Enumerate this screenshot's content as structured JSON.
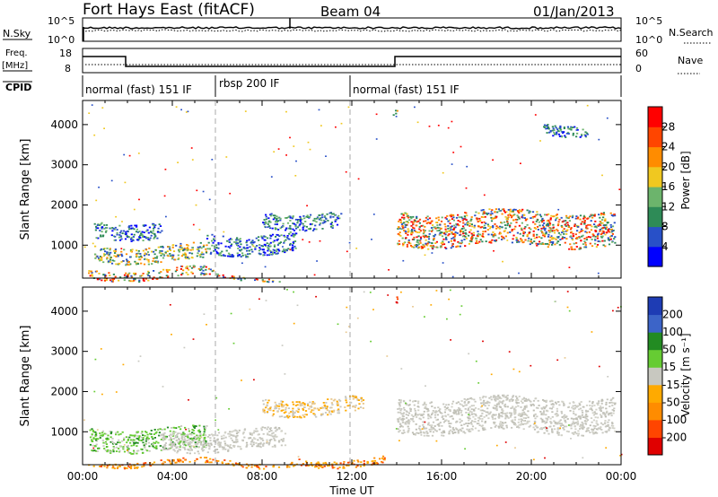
{
  "header": {
    "station": "Fort Hays East (fitACF)",
    "beam": "Beam 04",
    "date": "01/Jan/2013"
  },
  "top_panels": {
    "nsky_label": "N.Sky",
    "nsearch_label": "N.Search",
    "noise_ticks_left": [
      "10^5",
      "10^0"
    ],
    "noise_ticks_right": [
      "10^5",
      "10^0"
    ],
    "freq_label_1": "Freq.",
    "freq_label_2": "[MHz]",
    "freq_ticks": [
      "18",
      "8"
    ],
    "nave_ticks": [
      "60",
      "0"
    ],
    "nave_label": "Nave",
    "cpid_label": "CPID",
    "cpid_segments": [
      {
        "label": "normal (fast) 151 IF"
      },
      {
        "label": "rbsp 200 IF"
      },
      {
        "label": "normal (fast) 151 IF"
      }
    ]
  },
  "power_colorbar": {
    "label": "Power [dB]",
    "ticks": [
      "28",
      "24",
      "20",
      "16",
      "12",
      "8",
      "4"
    ],
    "colors": [
      "#0000ff",
      "#2850c8",
      "#2e8b57",
      "#6cb46c",
      "#f0c820",
      "#ff8c00",
      "#ff4500",
      "#ff0000"
    ]
  },
  "velocity_colorbar": {
    "label": "Velocity [m s⁻¹]",
    "ticks": [
      "200",
      "100",
      "50",
      "15",
      "-15",
      "-50",
      "-100",
      "-200"
    ],
    "colors": [
      "#1e3cb4",
      "#3c64c8",
      "#228b22",
      "#66cc33",
      "#c8c8c0",
      "#ffaa00",
      "#ff8c00",
      "#ff4500",
      "#e00000"
    ]
  },
  "chart_data": [
    {
      "type": "heatmap",
      "title": "",
      "xlabel": "",
      "ylabel": "Slant Range [km]",
      "xlim_hours": [
        0,
        24
      ],
      "ylim_km": [
        180,
        4600
      ],
      "yticks": [
        "4000",
        "3000",
        "2000",
        "1000"
      ],
      "ytick_values": [
        4000,
        3000,
        2000,
        1000
      ],
      "mode_boundaries_hours": [
        6,
        12
      ],
      "bands": [
        {
          "t0": 0.2,
          "t1": 5.8,
          "r": [
            300,
            420
          ],
          "level": "high"
        },
        {
          "t0": 0.3,
          "t1": 9.0,
          "r": [
            180,
            260
          ],
          "level": "high"
        },
        {
          "t0": 0.5,
          "t1": 5.5,
          "r": [
            600,
            1000
          ],
          "level": "mid"
        },
        {
          "t0": 0.5,
          "t1": 3.5,
          "r": [
            1200,
            1600
          ],
          "level": "low"
        },
        {
          "t0": 5.5,
          "t1": 9.5,
          "r": [
            800,
            1300
          ],
          "level": "low"
        },
        {
          "t0": 8.0,
          "t1": 11.5,
          "r": [
            1450,
            1850
          ],
          "level": "low"
        },
        {
          "t0": 14.0,
          "t1": 23.7,
          "r": [
            1000,
            1850
          ],
          "level": "high"
        },
        {
          "t0": 20.5,
          "t1": 22.5,
          "r": [
            3750,
            4050
          ],
          "level": "low"
        },
        {
          "t0": 13.8,
          "t1": 14.0,
          "r": [
            4250,
            4400
          ],
          "level": "mid"
        }
      ]
    },
    {
      "type": "heatmap",
      "title": "",
      "xlabel": "Time UT",
      "ylabel": "Slant Range [km]",
      "xlim_hours": [
        0,
        24
      ],
      "ylim_km": [
        180,
        4600
      ],
      "xticks": [
        "00:00",
        "04:00",
        "08:00",
        "12:00",
        "16:00",
        "20:00",
        "00:00"
      ],
      "xtick_values": [
        0,
        4,
        8,
        12,
        16,
        20,
        24
      ],
      "yticks": [
        "4000",
        "3000",
        "2000",
        "1000"
      ],
      "ytick_values": [
        4000,
        3000,
        2000,
        1000
      ],
      "mode_boundaries_hours": [
        6,
        12
      ],
      "bands": [
        {
          "t0": 0.2,
          "t1": 9.5,
          "r": [
            180,
            300
          ],
          "level": "orange"
        },
        {
          "t0": 9.5,
          "t1": 13.5,
          "r": [
            180,
            350
          ],
          "level": "orange"
        },
        {
          "t0": 0.3,
          "t1": 5.5,
          "r": [
            550,
            1100
          ],
          "level": "green"
        },
        {
          "t0": 3.5,
          "t1": 9.0,
          "r": [
            550,
            1050
          ],
          "level": "gray"
        },
        {
          "t0": 8.0,
          "t1": 12.5,
          "r": [
            1450,
            1850
          ],
          "level": "tan"
        },
        {
          "t0": 14.0,
          "t1": 23.7,
          "r": [
            1000,
            1850
          ],
          "level": "gray"
        },
        {
          "t0": 13.9,
          "t1": 14.0,
          "r": [
            4100,
            4400
          ],
          "level": "red"
        }
      ]
    }
  ]
}
